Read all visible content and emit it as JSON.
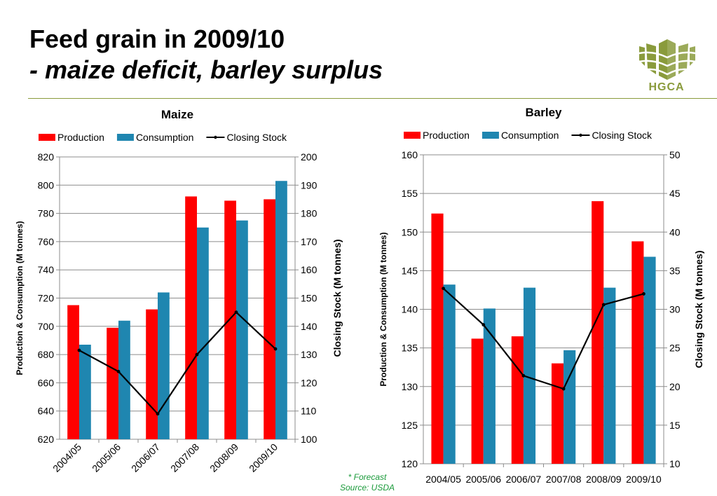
{
  "header": {
    "title": "Feed grain in 2009/10",
    "subtitle": "- maize deficit, barley surplus",
    "logo_text": "HGCA",
    "brand_color": "#8a9b3c"
  },
  "footnote": {
    "line1": "* Forecast",
    "line2": "Source: USDA"
  },
  "chart_data": [
    {
      "type": "bar",
      "title": "Maize",
      "categories": [
        "2004/05",
        "2005/06",
        "2006/07",
        "2007/08",
        "2008/09",
        "2009/10"
      ],
      "series": [
        {
          "name": "Production",
          "type": "bar",
          "axis": "left",
          "color": "#ff0000",
          "values": [
            715,
            699,
            712,
            792,
            789,
            790
          ]
        },
        {
          "name": "Consumption",
          "type": "bar",
          "axis": "left",
          "color": "#1f86b0",
          "values": [
            687,
            704,
            724,
            770,
            775,
            803
          ]
        },
        {
          "name": "Closing Stock",
          "type": "line",
          "axis": "right",
          "color": "#000000",
          "values": [
            131.5,
            124,
            109,
            130,
            145,
            132
          ]
        }
      ],
      "ylabel": "Production & Consumption (M tonnes)",
      "y2label": "Closing Stock (M tonnes)",
      "ylim": [
        620,
        820
      ],
      "y2lim": [
        100,
        200
      ],
      "yticks": [
        620,
        640,
        660,
        680,
        700,
        720,
        740,
        760,
        780,
        800,
        820
      ],
      "y2ticks": [
        100,
        110,
        120,
        130,
        140,
        150,
        160,
        170,
        180,
        190,
        200
      ],
      "xtick_rotation": "rotated",
      "grid": true,
      "legend": "top"
    },
    {
      "type": "bar",
      "title": "Barley",
      "categories": [
        "2004/05",
        "2005/06",
        "2006/07",
        "2007/08",
        "2008/09",
        "2009/10"
      ],
      "series": [
        {
          "name": "Production",
          "type": "bar",
          "axis": "left",
          "color": "#ff0000",
          "values": [
            152.4,
            136.2,
            136.5,
            133,
            154,
            148.8
          ]
        },
        {
          "name": "Consumption",
          "type": "bar",
          "axis": "left",
          "color": "#1f86b0",
          "values": [
            143.2,
            140.1,
            142.8,
            134.7,
            142.8,
            146.8
          ]
        },
        {
          "name": "Closing Stock",
          "type": "line",
          "axis": "right",
          "color": "#000000",
          "values": [
            32.7,
            28,
            21.4,
            19.7,
            30.6,
            32
          ]
        }
      ],
      "ylabel": "Production & Consumption (M tonnes)",
      "y2label": "Closing Stock (M tonnes)",
      "ylim": [
        120,
        160
      ],
      "y2lim": [
        10,
        50
      ],
      "yticks": [
        120,
        125,
        130,
        135,
        140,
        145,
        150,
        155,
        160
      ],
      "y2ticks": [
        10,
        15,
        20,
        25,
        30,
        35,
        40,
        45,
        50
      ],
      "xtick_rotation": "horizontal",
      "grid": true,
      "legend": "top"
    }
  ]
}
